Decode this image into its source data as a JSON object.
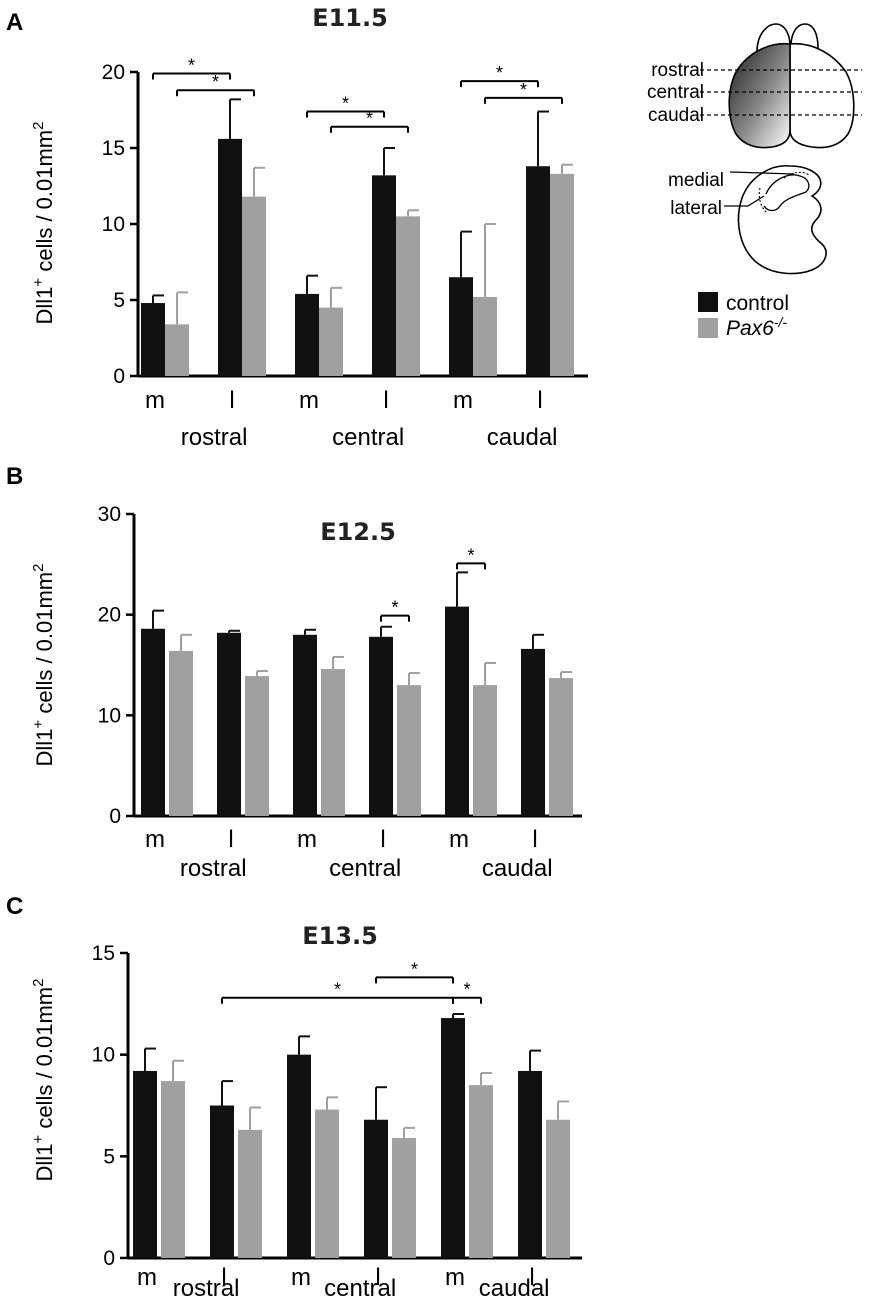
{
  "chart_data": [
    {
      "panel": "A",
      "type": "bar",
      "title": "E11.5",
      "ylabel": "Dll1+ cells / 0.01mm2",
      "ylabel_main": "Dll1",
      "ylabel_sup": "+",
      "ylabel_rest": " cells / 0.01mm",
      "ylabel_exp": "2",
      "ylim": [
        0,
        20
      ],
      "yticks": [
        0,
        5,
        10,
        15,
        20
      ],
      "categories": [
        "m",
        "l",
        "m",
        "l",
        "m",
        "l"
      ],
      "groups": [
        "rostral",
        "central",
        "caudal"
      ],
      "series": [
        {
          "name": "control",
          "values": [
            4.8,
            15.6,
            5.4,
            13.2,
            6.5,
            13.8
          ],
          "errors": [
            0.5,
            2.6,
            1.2,
            1.8,
            3.0,
            3.6
          ]
        },
        {
          "name": "Pax6-/-",
          "values": [
            3.4,
            11.8,
            4.5,
            10.5,
            5.2,
            13.3
          ],
          "errors": [
            2.1,
            1.9,
            1.3,
            0.4,
            4.8,
            0.6
          ]
        }
      ],
      "significance": [
        {
          "from": 0,
          "to": 2,
          "y": 19.9,
          "label": "*"
        },
        {
          "from": 1,
          "to": 3,
          "y": 18.8,
          "label": "*"
        },
        {
          "from": 4,
          "to": 6,
          "y": 17.4,
          "label": "*"
        },
        {
          "from": 5,
          "to": 7,
          "y": 16.4,
          "label": "*"
        },
        {
          "from": 8,
          "to": 10,
          "y": 19.4,
          "label": "*"
        },
        {
          "from": 9,
          "to": 11,
          "y": 18.3,
          "label": "*"
        }
      ]
    },
    {
      "panel": "B",
      "type": "bar",
      "title": "E12.5",
      "ylabel": "Dll1+ cells / 0.01mm2",
      "ylabel_main": "Dll1",
      "ylabel_sup": "+",
      "ylabel_rest": " cells / 0.01mm",
      "ylabel_exp": "2",
      "ylim": [
        0,
        30
      ],
      "yticks": [
        0,
        10,
        20,
        30
      ],
      "categories": [
        "m",
        "l",
        "m",
        "l",
        "m",
        "l"
      ],
      "groups": [
        "rostral",
        "central",
        "caudal"
      ],
      "series": [
        {
          "name": "control",
          "values": [
            18.6,
            18.2,
            18.0,
            17.8,
            20.8,
            16.6
          ],
          "errors": [
            1.8,
            0.2,
            0.5,
            1.0,
            3.4,
            1.4
          ]
        },
        {
          "name": "Pax6-/-",
          "values": [
            16.4,
            13.9,
            14.6,
            13.0,
            13.0,
            13.7
          ],
          "errors": [
            1.6,
            0.5,
            1.2,
            1.2,
            2.2,
            0.6
          ]
        }
      ],
      "significance": [
        {
          "from": 6,
          "to": 7,
          "y": 19.9,
          "label": "*"
        },
        {
          "from": 8,
          "to": 9,
          "y": 25.1,
          "label": "*"
        }
      ]
    },
    {
      "panel": "C",
      "type": "bar",
      "title": "E13.5",
      "ylabel": "Dll1+ cells / 0.01mm2",
      "ylabel_main": "Dll1",
      "ylabel_sup": "+",
      "ylabel_rest": " cells / 0.01mm",
      "ylabel_exp": "2",
      "ylim": [
        0,
        15
      ],
      "yticks": [
        0,
        5,
        10,
        15
      ],
      "categories": [
        "m",
        "l",
        "m",
        "l",
        "m",
        "l"
      ],
      "groups": [
        "rostral",
        "central",
        "caudal"
      ],
      "series": [
        {
          "name": "control",
          "values": [
            9.2,
            7.5,
            10.0,
            6.8,
            11.8,
            9.2
          ],
          "errors": [
            1.1,
            1.2,
            0.9,
            1.6,
            0.2,
            1.0
          ]
        },
        {
          "name": "Pax6-/-",
          "values": [
            8.7,
            6.3,
            7.3,
            5.9,
            8.5,
            6.8
          ],
          "errors": [
            1.0,
            1.1,
            0.6,
            0.5,
            0.6,
            0.9
          ]
        }
      ],
      "significance": [
        {
          "from": 2,
          "to": 8,
          "y": 12.8,
          "label": "*"
        },
        {
          "from": 6,
          "to": 8,
          "y": 13.8,
          "label": "*"
        },
        {
          "from": 8,
          "to": 9,
          "y": 12.8,
          "label": "*"
        }
      ]
    }
  ],
  "legend": {
    "items": [
      {
        "label": "control",
        "color": "#000000"
      },
      {
        "label_main": "Pax6",
        "label_sup": "-/-",
        "color": "#999999"
      }
    ]
  },
  "schematic": {
    "levels": [
      "rostral",
      "central",
      "caudal"
    ],
    "regions": [
      "medial",
      "lateral"
    ]
  },
  "colors": {
    "control": "#111111",
    "mutant": "#a0a0a0"
  }
}
